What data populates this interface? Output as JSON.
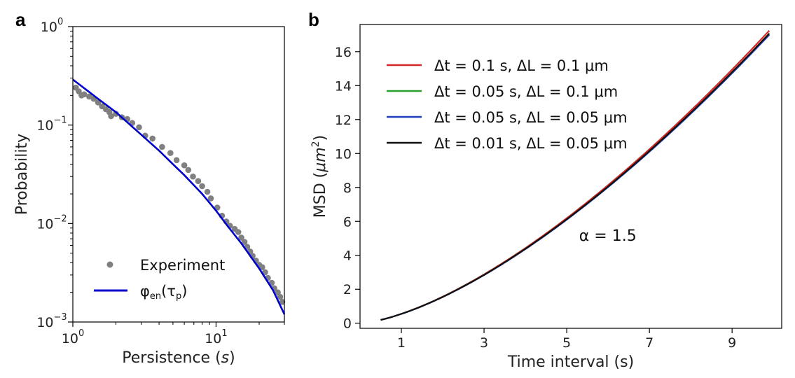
{
  "panel_labels": [
    "a",
    "b"
  ],
  "chart_data": [
    {
      "type": "scatter",
      "panel": "a",
      "xscale": "log",
      "yscale": "log",
      "xlim": [
        1,
        30
      ],
      "ylim": [
        0.001,
        1
      ],
      "xlabel_text": "Persistence (",
      "xlabel_var": "s",
      "xlabel_end": ")",
      "ylabel": "Probability",
      "xticks": [
        {
          "value": 1,
          "base": "10",
          "exp": "0"
        },
        {
          "value": 10,
          "base": "10",
          "exp": "1"
        }
      ],
      "yticks": [
        {
          "value": 1,
          "base": "10",
          "exp": "0"
        },
        {
          "value": 0.1,
          "base": "10",
          "exp": "−1"
        },
        {
          "value": 0.01,
          "base": "10",
          "exp": "−2"
        },
        {
          "value": 0.001,
          "base": "10",
          "exp": "−3"
        }
      ],
      "legend_position": "lower-left",
      "series": [
        {
          "name": "Experiment",
          "kind": "points",
          "color": "#808080",
          "points": [
            [
              1.05,
              0.24
            ],
            [
              1.1,
              0.22
            ],
            [
              1.15,
              0.2
            ],
            [
              1.2,
              0.205
            ],
            [
              1.3,
              0.195
            ],
            [
              1.4,
              0.185
            ],
            [
              1.5,
              0.17
            ],
            [
              1.6,
              0.155
            ],
            [
              1.7,
              0.145
            ],
            [
              1.8,
              0.135
            ],
            [
              1.85,
              0.123
            ],
            [
              2.0,
              0.13
            ],
            [
              2.2,
              0.12
            ],
            [
              2.4,
              0.115
            ],
            [
              2.6,
              0.105
            ],
            [
              2.9,
              0.095
            ],
            [
              3.2,
              0.078
            ],
            [
              3.6,
              0.073
            ],
            [
              4.2,
              0.06
            ],
            [
              4.8,
              0.052
            ],
            [
              5.3,
              0.044
            ],
            [
              6.0,
              0.039
            ],
            [
              6.4,
              0.035
            ],
            [
              6.9,
              0.03
            ],
            [
              7.5,
              0.027
            ],
            [
              8.0,
              0.024
            ],
            [
              8.7,
              0.021
            ],
            [
              9.2,
              0.018
            ],
            [
              10.2,
              0.0145
            ],
            [
              11.0,
              0.012
            ],
            [
              11.8,
              0.0105
            ],
            [
              12.5,
              0.0095
            ],
            [
              13.5,
              0.0088
            ],
            [
              14.3,
              0.0082
            ],
            [
              15.0,
              0.0072
            ],
            [
              15.8,
              0.0065
            ],
            [
              16.5,
              0.0058
            ],
            [
              17.3,
              0.0052
            ],
            [
              18.0,
              0.0047
            ],
            [
              19.0,
              0.0042
            ],
            [
              20.0,
              0.0038
            ],
            [
              21.0,
              0.0036
            ],
            [
              22.0,
              0.0032
            ],
            [
              23.0,
              0.0028
            ],
            [
              24.5,
              0.0025
            ],
            [
              25.5,
              0.0022
            ],
            [
              27.0,
              0.002
            ],
            [
              28.0,
              0.0018
            ],
            [
              29.0,
              0.0016
            ]
          ]
        },
        {
          "name_base": "φ",
          "name_sub1": "en",
          "name_mid": "(τ",
          "name_sub2": "p",
          "name_end": ")",
          "kind": "line",
          "color": "#0000cc",
          "points": [
            [
              1.0,
              0.29
            ],
            [
              1.5,
              0.185
            ],
            [
              2.0,
              0.135
            ],
            [
              3.0,
              0.08
            ],
            [
              4.0,
              0.055
            ],
            [
              5.0,
              0.04
            ],
            [
              6.0,
              0.031
            ],
            [
              8.0,
              0.02
            ],
            [
              10.0,
              0.0135
            ],
            [
              12.0,
              0.0095
            ],
            [
              15.0,
              0.0063
            ],
            [
              20.0,
              0.0035
            ],
            [
              25.0,
              0.0021
            ],
            [
              30.0,
              0.0012
            ]
          ]
        }
      ]
    },
    {
      "type": "line",
      "panel": "b",
      "xlim": [
        0,
        10.2
      ],
      "ylim": [
        -0.3,
        17.6
      ],
      "xlabel": "Time interval (s)",
      "ylabel_text": "MSD (",
      "ylabel_unit": "μm",
      "ylabel_exp": "2",
      "ylabel_end": ")",
      "xticks": [
        1,
        3,
        5,
        7,
        9
      ],
      "yticks": [
        0,
        2,
        4,
        6,
        8,
        10,
        12,
        14,
        16
      ],
      "annotation": {
        "text": "α = 1.5",
        "x": 5.3,
        "y": 4.85
      },
      "legend_position": "upper-left",
      "exponent_alpha": 1.5,
      "series": [
        {
          "label": "Δt = 0.1 s, ΔL = 0.1 μm",
          "color": "#d62728",
          "coef": 0.5535
        },
        {
          "label": "Δt = 0.05 s, ΔL = 0.1 μm",
          "color": "#2ca02c",
          "coef": 0.548
        },
        {
          "label": "Δt = 0.05 s, ΔL = 0.05 μm",
          "color": "#1f3fbf",
          "coef": 0.5455
        },
        {
          "label": "Δt = 0.01 s, ΔL = 0.05 μm",
          "color": "#111111",
          "coef": 0.548
        }
      ],
      "x_start": 0.5,
      "x_end": 9.9
    }
  ]
}
